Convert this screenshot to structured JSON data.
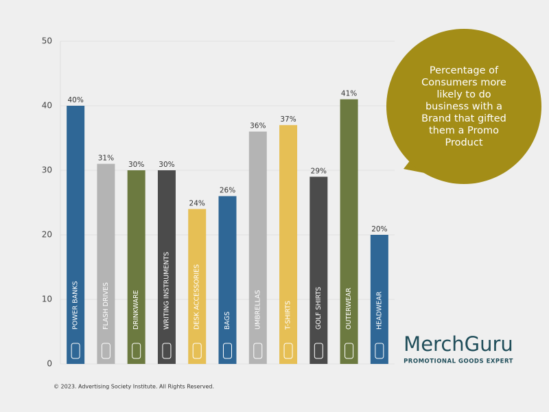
{
  "chart_data": {
    "type": "bar",
    "categories": [
      "POWER BANKS",
      "FLASH DRIVES",
      "DRINKWARE",
      "WRITING INSTRUMENTS",
      "DESK ACCESSORIES",
      "BAGS",
      "UMBRELLAS",
      "T-SHIRTS",
      "GOLF SHIRTS",
      "OUTERWEAR",
      "HEADWEAR"
    ],
    "values": [
      40,
      31,
      30,
      30,
      24,
      26,
      36,
      37,
      29,
      41,
      20
    ],
    "value_labels": [
      "40%",
      "31%",
      "30%",
      "30%",
      "24%",
      "26%",
      "36%",
      "37%",
      "29%",
      "41%",
      "20%"
    ],
    "colors": [
      "#2f6796",
      "#b4b4b4",
      "#6c7a40",
      "#4b4b4b",
      "#e6bf55",
      "#2f6796",
      "#b4b4b4",
      "#e6bf55",
      "#4b4b4b",
      "#6c7a40",
      "#2f6796"
    ],
    "ylim": [
      0,
      50
    ],
    "yticks": [
      0,
      10,
      20,
      30,
      40,
      50
    ],
    "grid": true,
    "annotation_lines": [
      "Percentage of",
      "Consumers more",
      "likely to do",
      "business with a",
      "Brand that gifted",
      "them a Promo",
      "Product"
    ],
    "annotation_color": "#a38d17"
  },
  "logo": {
    "name": "MerchGuru",
    "tagline": "PROMOTIONAL GOODS EXPERT"
  },
  "footer": "© 2023. Advertising Society Institute. All Rights Reserved."
}
